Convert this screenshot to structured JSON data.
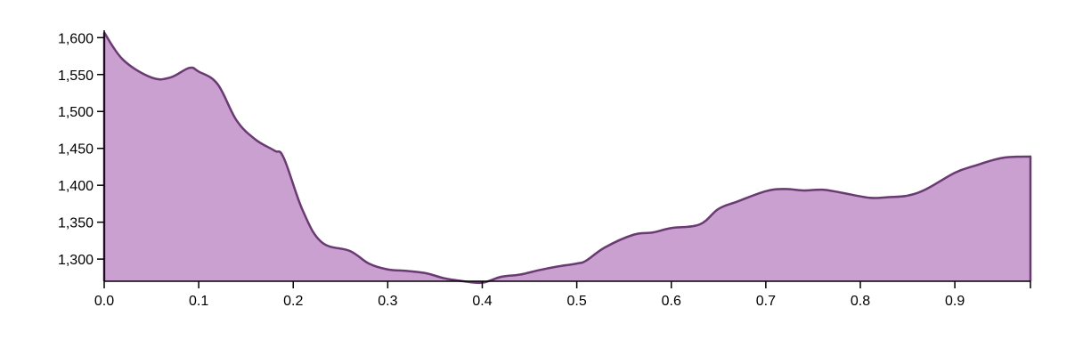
{
  "chart_data": {
    "type": "area",
    "title": "",
    "xlabel": "",
    "ylabel": "",
    "xlim": [
      0,
      0.98
    ],
    "ylim": [
      1270,
      1610
    ],
    "x_ticks": [
      0,
      0.1,
      0.2,
      0.3,
      0.4,
      0.5,
      0.6,
      0.7,
      0.8,
      0.9
    ],
    "x_tick_labels": [
      "0.0",
      "0.1",
      "0.2",
      "0.3",
      "0.4",
      "0.5",
      "0.6",
      "0.7",
      "0.8",
      "0.9"
    ],
    "y_ticks": [
      1300,
      1350,
      1400,
      1450,
      1500,
      1550,
      1600
    ],
    "y_tick_labels": [
      "1,300",
      "1,350",
      "1,400",
      "1,450",
      "1,500",
      "1,550",
      "1,600"
    ],
    "grid": false,
    "legend": "none",
    "colors": {
      "fill": "#c9a0d0",
      "stroke": "#6a3a72"
    },
    "x": [
      0,
      0.02,
      0.05,
      0.07,
      0.09,
      0.1,
      0.12,
      0.14,
      0.16,
      0.18,
      0.19,
      0.21,
      0.23,
      0.26,
      0.28,
      0.3,
      0.32,
      0.34,
      0.36,
      0.38,
      0.4,
      0.42,
      0.44,
      0.46,
      0.48,
      0.5,
      0.51,
      0.53,
      0.56,
      0.58,
      0.6,
      0.63,
      0.65,
      0.67,
      0.7,
      0.72,
      0.74,
      0.76,
      0.78,
      0.81,
      0.83,
      0.85,
      0.87,
      0.9,
      0.92,
      0.95,
      0.98
    ],
    "y": [
      1607,
      1570,
      1546,
      1546,
      1559,
      1554,
      1537,
      1488,
      1462,
      1447,
      1437,
      1366,
      1323,
      1311,
      1294,
      1286,
      1284,
      1281,
      1274,
      1270,
      1268,
      1276,
      1279,
      1285,
      1290,
      1294,
      1298,
      1316,
      1333,
      1336,
      1342,
      1347,
      1368,
      1378,
      1392,
      1395,
      1393,
      1394,
      1390,
      1383,
      1384,
      1386,
      1395,
      1417,
      1426,
      1437,
      1439
    ]
  }
}
